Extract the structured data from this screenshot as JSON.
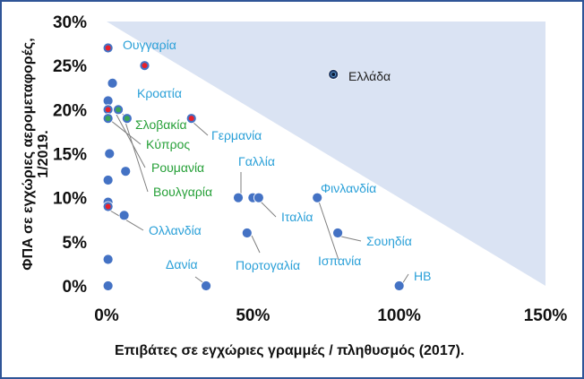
{
  "chart_data": {
    "type": "scatter",
    "title": "",
    "xlabel": "Επιβάτες σε εγχώριες γραμμές / πληθυσμός (2017).",
    "ylabel": "ΦΠΑ σε εγχώριες αερομεταφορές, 1/2019.",
    "xlim": [
      0,
      1.5
    ],
    "ylim": [
      0,
      0.3
    ],
    "x_ticks": [
      "0%",
      "50%",
      "100%",
      "150%"
    ],
    "y_ticks": [
      "0%",
      "5%",
      "10%",
      "15%",
      "20%",
      "25%",
      "30%"
    ],
    "shaded_region": "triangle above line from (0, 30%) to (150%, 0%)",
    "colors": {
      "shade": "#dae3f3",
      "point": "#4472c4",
      "point_dark": "#1f3864",
      "red_dot": "#e8202a",
      "green_dot": "#3aa657",
      "label_blue": "#2aa0d8",
      "label_green": "#26a038",
      "label_dark": "#222222",
      "leader": "#7f7f7f",
      "frame": "#2f5597"
    },
    "points": [
      {
        "x": 0.005,
        "y": 0.27,
        "label": "Ουγγαρία",
        "marker": "red"
      },
      {
        "x": 0.13,
        "y": 0.25,
        "label": "Κροατία",
        "marker": "red"
      },
      {
        "x": 0.775,
        "y": 0.24,
        "label": "Ελλάδα",
        "marker": "dark"
      },
      {
        "x": 0.02,
        "y": 0.23,
        "label": "",
        "marker": "plain"
      },
      {
        "x": 0.005,
        "y": 0.21,
        "label": "",
        "marker": "plain"
      },
      {
        "x": 0.005,
        "y": 0.2,
        "label": "",
        "marker": "red"
      },
      {
        "x": 0.04,
        "y": 0.2,
        "label": "Σλοβακία",
        "marker": "green"
      },
      {
        "x": 0.005,
        "y": 0.19,
        "label": "Κύπρος",
        "marker": "green"
      },
      {
        "x": 0.07,
        "y": 0.19,
        "label": "Ρουμανία",
        "marker": "green"
      },
      {
        "x": 0.29,
        "y": 0.19,
        "label": "Γερμανία",
        "marker": "red"
      },
      {
        "x": 0.01,
        "y": 0.15,
        "label": "",
        "marker": "plain"
      },
      {
        "x": 0.065,
        "y": 0.13,
        "label": "Βουλγαρία",
        "marker": "plain"
      },
      {
        "x": 0.005,
        "y": 0.12,
        "label": "",
        "marker": "plain"
      },
      {
        "x": 0.45,
        "y": 0.1,
        "label": "Γαλλία",
        "marker": "plain"
      },
      {
        "x": 0.5,
        "y": 0.1,
        "label": "Ιταλία",
        "marker": "plain"
      },
      {
        "x": 0.52,
        "y": 0.1,
        "label": "",
        "marker": "plain"
      },
      {
        "x": 0.72,
        "y": 0.1,
        "label": "Φινλανδία",
        "marker": "plain"
      },
      {
        "x": 0.005,
        "y": 0.095,
        "label": "",
        "marker": "plain"
      },
      {
        "x": 0.005,
        "y": 0.09,
        "label": "Ολλανδία",
        "marker": "red"
      },
      {
        "x": 0.06,
        "y": 0.08,
        "label": "",
        "marker": "plain"
      },
      {
        "x": 0.48,
        "y": 0.06,
        "label": "Πορτογαλία",
        "marker": "plain"
      },
      {
        "x": 0.79,
        "y": 0.06,
        "label": "Σουηδία",
        "marker": "plain"
      },
      {
        "x": 0.72,
        "y": 0.1,
        "label": "Ισπανία",
        "marker": "plain"
      },
      {
        "x": 0.005,
        "y": 0.03,
        "label": "",
        "marker": "plain"
      },
      {
        "x": 0.005,
        "y": 0.0,
        "label": "",
        "marker": "plain"
      },
      {
        "x": 0.34,
        "y": 0.0,
        "label": "Δανία",
        "marker": "plain"
      },
      {
        "x": 1.0,
        "y": 0.0,
        "label": "ΗΒ",
        "marker": "plain"
      }
    ]
  }
}
